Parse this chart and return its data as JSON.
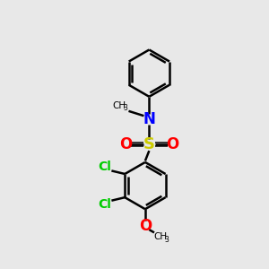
{
  "background_color": "#e8e8e8",
  "bond_color": "#000000",
  "bond_width": 1.8,
  "N_color": "#0000ff",
  "S_color": "#cccc00",
  "O_color": "#ff0000",
  "Cl_color": "#00cc00",
  "figsize": [
    3.0,
    3.0
  ],
  "dpi": 100,
  "xlim": [
    0,
    10
  ],
  "ylim": [
    0,
    10
  ]
}
